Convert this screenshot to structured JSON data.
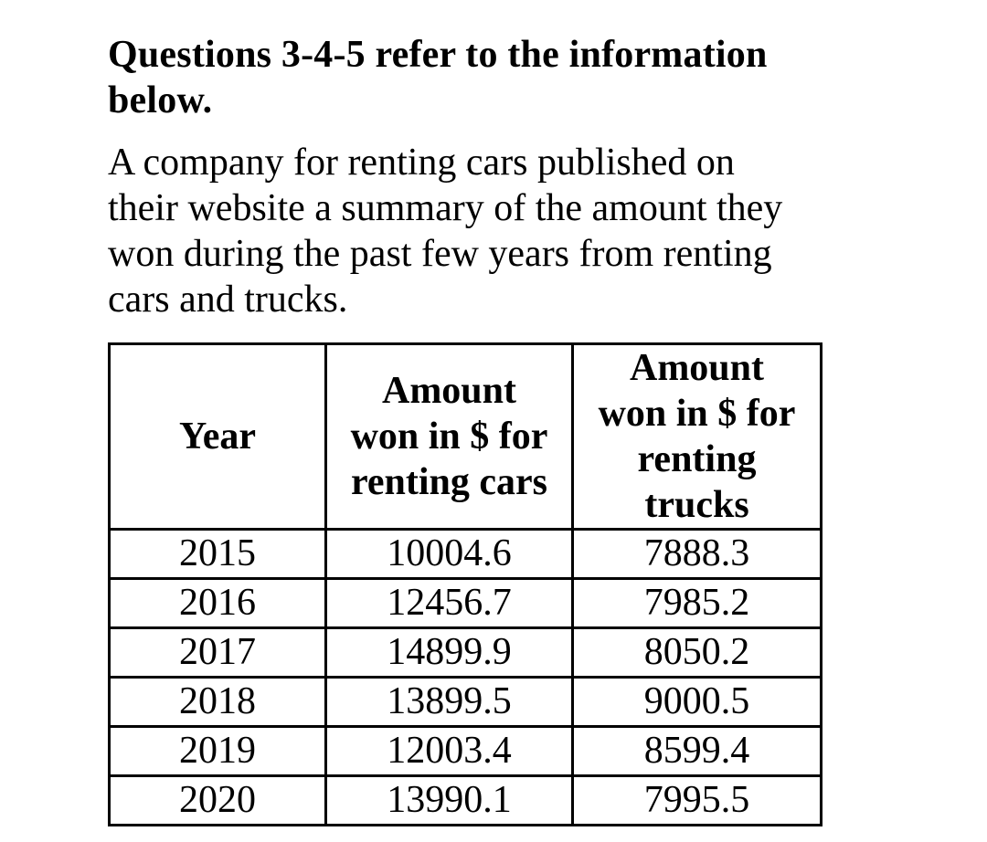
{
  "page": {
    "heading": {
      "lines": [
        "Questions 3-4-5 refer to the information",
        "below."
      ]
    },
    "paragraph": {
      "lines": [
        "A company for renting cars published on",
        "their website a summary of the amount they",
        "won during the past few years from renting",
        "cars and trucks."
      ]
    },
    "table": {
      "headers": [
        {
          "lines": [
            "Year"
          ]
        },
        {
          "lines": [
            "Amount",
            "won in $ for",
            "renting cars"
          ]
        },
        {
          "lines": [
            "Amount",
            "won in $ for",
            "renting",
            "trucks"
          ]
        }
      ],
      "rows": [
        [
          "2015",
          "10004.6",
          "7888.3"
        ],
        [
          "2016",
          "12456.7",
          "7985.2"
        ],
        [
          "2017",
          "14899.9",
          "8050.2"
        ],
        [
          "2018",
          "13899.5",
          "9000.5"
        ],
        [
          "2019",
          "12003.4",
          "8599.4"
        ],
        [
          "2020",
          "13990.1",
          "7995.5"
        ]
      ]
    },
    "colors": {
      "text": "#000000",
      "background": "#ffffff",
      "border": "#000000"
    }
  }
}
